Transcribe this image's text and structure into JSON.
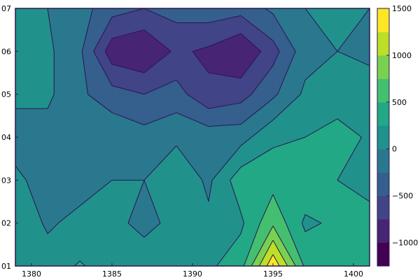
{
  "chart_data": {
    "type": "contourf",
    "title": "",
    "xlabel": "",
    "ylabel": "",
    "xlim": [
      1379,
      1401
    ],
    "ylim": [
      1,
      7
    ],
    "x_ticks": [
      1380,
      1385,
      1390,
      1395,
      1400
    ],
    "x_tick_labels": [
      "1380",
      "1385",
      "1390",
      "1395",
      "1400"
    ],
    "y_ticks": [
      1,
      2,
      3,
      4,
      5,
      6,
      7
    ],
    "y_tick_labels": [
      "01",
      "02",
      "03",
      "04",
      "05",
      "06",
      "07"
    ],
    "grid": false,
    "colorbar": {
      "ticks": [
        -1000,
        -500,
        0,
        500,
        1000,
        1500
      ],
      "tick_labels": [
        "−1000",
        "−500",
        "0",
        "500",
        "1000",
        "1500"
      ],
      "levels": [
        -1250,
        -1000,
        -750,
        -500,
        -250,
        0,
        250,
        500,
        750,
        1000,
        1250,
        1500
      ],
      "colors": [
        "#440154",
        "#482475",
        "#414487",
        "#355f8d",
        "#2a788e",
        "#21918c",
        "#22a884",
        "#44bf70",
        "#7ad151",
        "#bddf26",
        "#fde725"
      ]
    },
    "x": [
      1379,
      1381,
      1383,
      1385,
      1387,
      1389,
      1391,
      1393,
      1395,
      1397,
      1399,
      1401
    ],
    "y": [
      1,
      2,
      3,
      4,
      5,
      6,
      7
    ],
    "z": [
      [
        200,
        150,
        270,
        150,
        100,
        100,
        200,
        400,
        1450,
        450,
        350,
        300
      ],
      [
        250,
        -50,
        100,
        50,
        -50,
        50,
        50,
        200,
        700,
        200,
        300,
        400
      ],
      [
        50,
        -100,
        -150,
        0,
        0,
        200,
        -50,
        400,
        400,
        450,
        250,
        100
      ],
      [
        -100,
        -100,
        -150,
        -50,
        -150,
        -50,
        -100,
        -100,
        200,
        250,
        400,
        200
      ],
      [
        50,
        50,
        -200,
        -400,
        -500,
        -400,
        -700,
        -600,
        -300,
        50,
        50,
        100
      ],
      [
        0,
        50,
        -200,
        -900,
        -1000,
        -700,
        -800,
        -1000,
        -600,
        -100,
        0,
        -50
      ],
      [
        0,
        0,
        -150,
        -400,
        -500,
        -400,
        -350,
        -400,
        -200,
        0,
        0,
        0
      ]
    ]
  }
}
